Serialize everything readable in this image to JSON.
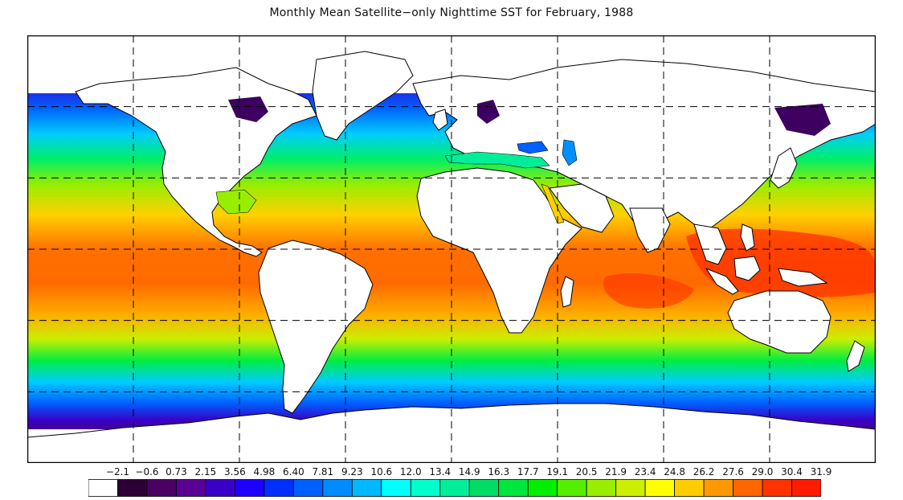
{
  "title": "Monthly Mean Satellite−only Nighttime SST for February, 1988",
  "legend": {
    "labels": [
      "−2.1",
      "−0.6",
      "0.73",
      "2.15",
      "3.56",
      "4.98",
      "6.40",
      "7.81",
      "9.23",
      "10.6",
      "12.0",
      "13.4",
      "14.9",
      "16.3",
      "17.7",
      "19.1",
      "20.5",
      "21.9",
      "23.4",
      "24.8",
      "26.2",
      "27.6",
      "29.0",
      "30.4",
      "31.9"
    ],
    "colors": [
      "#ffffff",
      "#2d0036",
      "#4b0063",
      "#5a0095",
      "#3a00c8",
      "#1e00ff",
      "#0030ff",
      "#0060ff",
      "#008cff",
      "#00b8ff",
      "#00ffff",
      "#00ffcc",
      "#00ee99",
      "#00dd66",
      "#00e640",
      "#00ee00",
      "#55ee00",
      "#99ee00",
      "#ccee00",
      "#ffff00",
      "#ffcc00",
      "#ff9900",
      "#ff6600",
      "#ff3300",
      "#ff1a00"
    ]
  },
  "map": {
    "colors": {
      "land": "#ffffff",
      "coast": "#000000",
      "grid": "#000000",
      "polar": "#3d0060",
      "cold": "#3020d0",
      "cool": "#00a0ff",
      "mild": "#20ee40",
      "warm": "#ffd000",
      "hot": "#ff7000",
      "hottest": "#ff3000"
    }
  }
}
